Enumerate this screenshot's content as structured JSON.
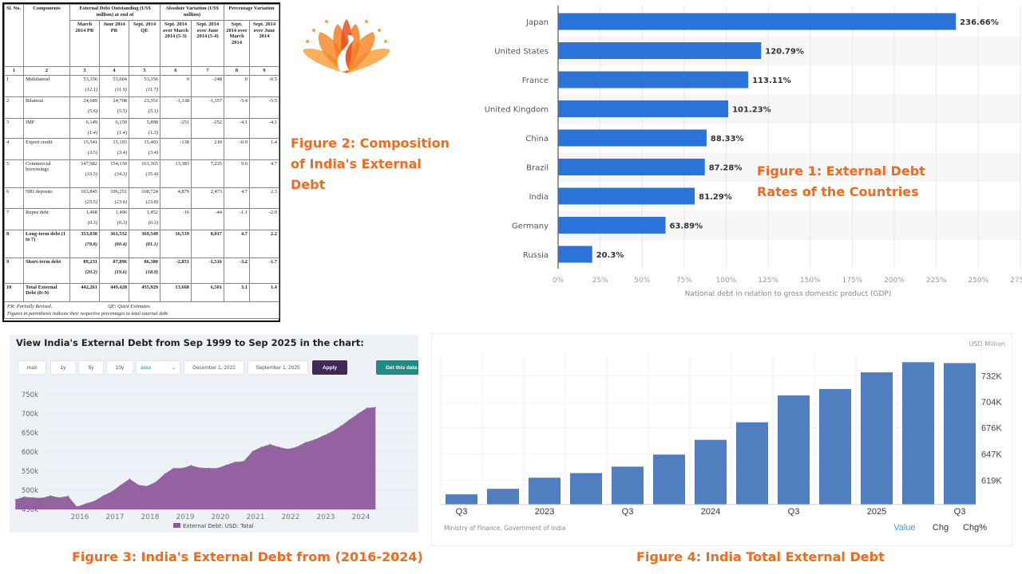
{
  "figure_captions": {
    "fig1": "Figure 1: External Debt Rates of the Countries",
    "fig2": "Figure 2: Composition of India's External Debt",
    "fig3": "Figure 3: India's External Debt from (2016-2024)",
    "fig4": "Figure 4: India Total External Debt"
  },
  "table": {
    "headers": {
      "sl": "Sl. No.",
      "components": "Components",
      "outstanding": "External Debt Outstanding (US$ million) at end of",
      "absolute": "Absolute Variation (US$ million)",
      "percentage": "Percentage Variation",
      "sub": [
        "March 2014 PR",
        "June 2014 PR",
        "Sept. 2014 QE",
        "Sept. 2014 over March 2014 (5-3)",
        "Sept. 2014 over June 2014 (5-4)",
        "Sept. 2014 over March 2014",
        "Sept. 2014 over June 2014"
      ],
      "numbers": [
        "1",
        "2",
        "3",
        "4",
        "5",
        "6",
        "7",
        "8",
        "9"
      ]
    },
    "rows": [
      {
        "sl": "1",
        "name": "Multilateral",
        "v": [
          "53,356",
          "53,604",
          "53,356"
        ],
        "p": [
          "(12.1)",
          "(11.9)",
          "(11.7)"
        ],
        "c6": "0",
        "c7": "-248",
        "c8": "0",
        "c9": "-0.5"
      },
      {
        "sl": "2",
        "name": "Bilateral",
        "v": [
          "24,689",
          "24,708",
          "23,351"
        ],
        "p": [
          "(5.6)",
          "(5.5)",
          "(5.1)"
        ],
        "c6": "-1,338",
        "c7": "-1,357",
        "c8": "-5.4",
        "c9": "-5.5"
      },
      {
        "sl": "3",
        "name": "IMF",
        "v": [
          "6,149",
          "6,150",
          "5,898"
        ],
        "p": [
          "(1.4)",
          "(1.4)",
          "(1.3)"
        ],
        "c6": "-251",
        "c7": "-252",
        "c8": "-4.1",
        "c9": "-4.1"
      },
      {
        "sl": "4",
        "name": "Export credit",
        "v": [
          "15,541",
          "15,193",
          "15,403"
        ],
        "p": [
          "(3.5)",
          "(3.4)",
          "(3.4)"
        ],
        "c6": "-138",
        "c7": "210",
        "c8": "-0.9",
        "c9": "1.4"
      },
      {
        "sl": "5",
        "name": "Commercial borrowings",
        "v": [
          "147,982",
          "154,130",
          "161,365"
        ],
        "p": [
          "(33.5)",
          "(34.3)",
          "(35.4)"
        ],
        "c6": "13,383",
        "c7": "7,235",
        "c8": "9.0",
        "c9": "4.7"
      },
      {
        "sl": "6",
        "name": "NRI deposits",
        "v": [
          "103,845",
          "106,251",
          "108,724"
        ],
        "p": [
          "(23.5)",
          "(23.6)",
          "(23.8)"
        ],
        "c6": "4,879",
        "c7": "2,473",
        "c8": "4.7",
        "c9": "2.3"
      },
      {
        "sl": "7",
        "name": "Rupee debt",
        "v": [
          "1,468",
          "1,496",
          "1,452"
        ],
        "p": [
          "(0.3)",
          "(0.3)",
          "(0.3)"
        ],
        "c6": "-16",
        "c7": "-44",
        "c8": "-1.1",
        "c9": "-2.9"
      },
      {
        "sl": "8",
        "name": "Long-term debt  (1 to 7)",
        "v": [
          "353,030",
          "361,532",
          "369,549"
        ],
        "p": [
          "(79.8)",
          "(80.4)",
          "(81.1)"
        ],
        "c6": "16,519",
        "c7": "8,017",
        "c8": "4.7",
        "c9": "2.2",
        "bold": true
      },
      {
        "sl": "9",
        "name": "Short-term debt",
        "v": [
          "89,231",
          "87,896",
          "86,380"
        ],
        "p": [
          "(20.2)",
          "(19.6)",
          "(18.9)"
        ],
        "c6": "-2,851",
        "c7": "-1,516",
        "c8": "-3.2",
        "c9": "-1.7",
        "bold": true
      },
      {
        "sl": "10",
        "name": "Total External Debt (8+9)",
        "v": [
          "442,261",
          "449,428",
          "455,929"
        ],
        "p": [
          "",
          "",
          ""
        ],
        "c6": "13,668",
        "c7": "6,501",
        "c8": "3.1",
        "c9": "1.4",
        "bold": true
      }
    ],
    "note1a": "P.R: Partially Revised.",
    "note1b": "QE: Quick Estimates.",
    "note2": "Figures in parenthesis indicate their respective percentages to total external debt."
  },
  "logo": {
    "icon": "peacock-lotus-logo",
    "colors": [
      "#f7a13c",
      "#f47b20",
      "#e9501c"
    ]
  },
  "chart_data": [
    {
      "type": "bar",
      "orientation": "horizontal",
      "title": "",
      "xlabel": "National debt in relation to gross domestic product (GDP)",
      "ylabel": "",
      "categories": [
        "Japan",
        "United States",
        "France",
        "United Kingdom",
        "China",
        "Brazil",
        "India",
        "Germany",
        "Russia"
      ],
      "values": [
        236.66,
        120.79,
        113.11,
        101.23,
        88.33,
        87.28,
        81.29,
        63.89,
        20.3
      ],
      "data_labels": [
        "236.66%",
        "120.79%",
        "113.11%",
        "101.23%",
        "88.33%",
        "87.28%",
        "81.29%",
        "63.89%",
        "20.3%"
      ],
      "xlim": [
        0,
        275
      ],
      "xticks": [
        "0%",
        "25%",
        "50%",
        "75%",
        "100%",
        "125%",
        "150%",
        "175%",
        "200%",
        "225%",
        "250%",
        "275%"
      ],
      "grid": true,
      "color": "#2a73d9"
    },
    {
      "type": "area",
      "title": "View India's External Debt from Sep 1999 to Sep 2025 in the chart:",
      "controls": {
        "ranges": [
          "max",
          "1y",
          "5y",
          "10y"
        ],
        "chart_type": "area",
        "start_date": "December 1, 2022",
        "end_date": "September 1, 2025",
        "apply": "Apply",
        "get_data": "Get this data"
      },
      "series": [
        {
          "name": "External Debt: USD: Total",
          "color": "#8e5a9b",
          "x": [
            "2015-03",
            "2015-06",
            "2015-09",
            "2015-12",
            "2016-03",
            "2016-06",
            "2016-09",
            "2016-12",
            "2017-03",
            "2017-06",
            "2017-09",
            "2017-12",
            "2018-03",
            "2018-06",
            "2018-09",
            "2018-12",
            "2019-03",
            "2019-06",
            "2019-09",
            "2019-12",
            "2020-03",
            "2020-06",
            "2020-09",
            "2020-12",
            "2021-03",
            "2021-06",
            "2021-09",
            "2021-12",
            "2022-03",
            "2022-06",
            "2022-09",
            "2022-12",
            "2023-03",
            "2023-06",
            "2023-09",
            "2023-12",
            "2024-03",
            "2024-06",
            "2024-09",
            "2024-12",
            "2025-03",
            "2025-06"
          ],
          "y": [
            476,
            483,
            481,
            480,
            486,
            481,
            485,
            457,
            465,
            472,
            486,
            497,
            514,
            530,
            514,
            511,
            522,
            543,
            558,
            558,
            565,
            559,
            558,
            558,
            566,
            574,
            576,
            602,
            613,
            620,
            613,
            608,
            613,
            625,
            632,
            642,
            653,
            667,
            684,
            700,
            715,
            717
          ]
        }
      ],
      "yticks": [
        "450k",
        "500k",
        "550k",
        "600k",
        "650k",
        "700k",
        "750k"
      ],
      "ylim": [
        450,
        750
      ],
      "xticks": [
        "2016",
        "2017",
        "2018",
        "2019",
        "2020",
        "2021",
        "2022",
        "2023",
        "2024"
      ],
      "grid": true,
      "legend": "bottom"
    },
    {
      "type": "bar",
      "unit": "USD Million",
      "source": "Ministry of Finance, Government of India",
      "categories": [
        "2022 Q3",
        "2022 Q4",
        "2023 Q1",
        "2023 Q2",
        "2023 Q3",
        "2023 Q4",
        "2024 Q1",
        "2024 Q2",
        "2024 Q3",
        "2024 Q4",
        "2025 Q1",
        "2025 Q2",
        "2025 Q3"
      ],
      "xtick_labels": [
        "Q3",
        "",
        "2023",
        "",
        "Q3",
        "",
        "2024",
        "",
        "Q3",
        "",
        "2025",
        "",
        "Q3"
      ],
      "values": [
        604,
        610,
        622,
        627,
        634,
        647,
        663,
        682,
        711,
        718,
        736,
        747,
        746
      ],
      "yticks": [
        "619K",
        "647K",
        "676K",
        "704K",
        "732K"
      ],
      "ylim": [
        593,
        760
      ],
      "tabs": [
        "Value",
        "Chg",
        "Chg%"
      ],
      "active_tab": "Value",
      "color": "#4f7fbf",
      "grid": true
    }
  ]
}
